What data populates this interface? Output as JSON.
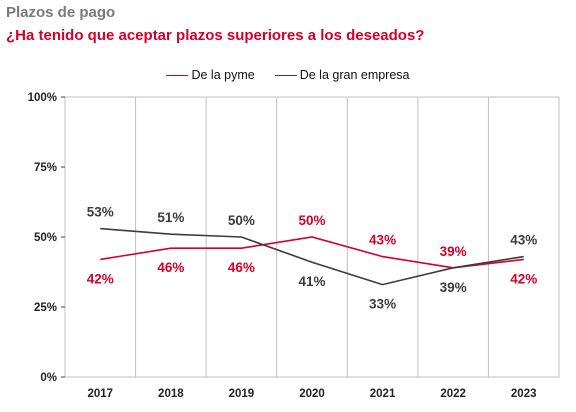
{
  "header": {
    "title": "Plazos de pago",
    "subtitle": "¿Ha tenido que aceptar plazos superiores a los deseados?"
  },
  "colors": {
    "pyme": "#d4002a",
    "gran_empresa": "#3c3c3c",
    "title": "#7a7a7a",
    "grid": "#bfbfbf"
  },
  "chart_data": {
    "type": "line",
    "title": "Plazos de pago",
    "subtitle": "¿Ha tenido que aceptar plazos superiores a los deseados?",
    "x": [
      "2017",
      "2018",
      "2019",
      "2020",
      "2021",
      "2022",
      "2023"
    ],
    "ylim": [
      0,
      100
    ],
    "yticks": [
      0,
      25,
      50,
      75,
      100
    ],
    "ytick_labels": [
      "0%",
      "25%",
      "50%",
      "75%",
      "100%"
    ],
    "grid": "vertical",
    "legend_position": "top-center",
    "series": [
      {
        "name": "De la pyme",
        "color": "#d4002a",
        "values": [
          42,
          46,
          46,
          50,
          43,
          39,
          42
        ],
        "labels": [
          "42%",
          "46%",
          "46%",
          "50%",
          "43%",
          "39%",
          "42%"
        ]
      },
      {
        "name": "De la gran empresa",
        "color": "#3c3c3c",
        "values": [
          53,
          51,
          50,
          41,
          33,
          39,
          43
        ],
        "labels": [
          "53%",
          "51%",
          "50%",
          "41%",
          "33%",
          "39%",
          "43%"
        ]
      }
    ]
  }
}
